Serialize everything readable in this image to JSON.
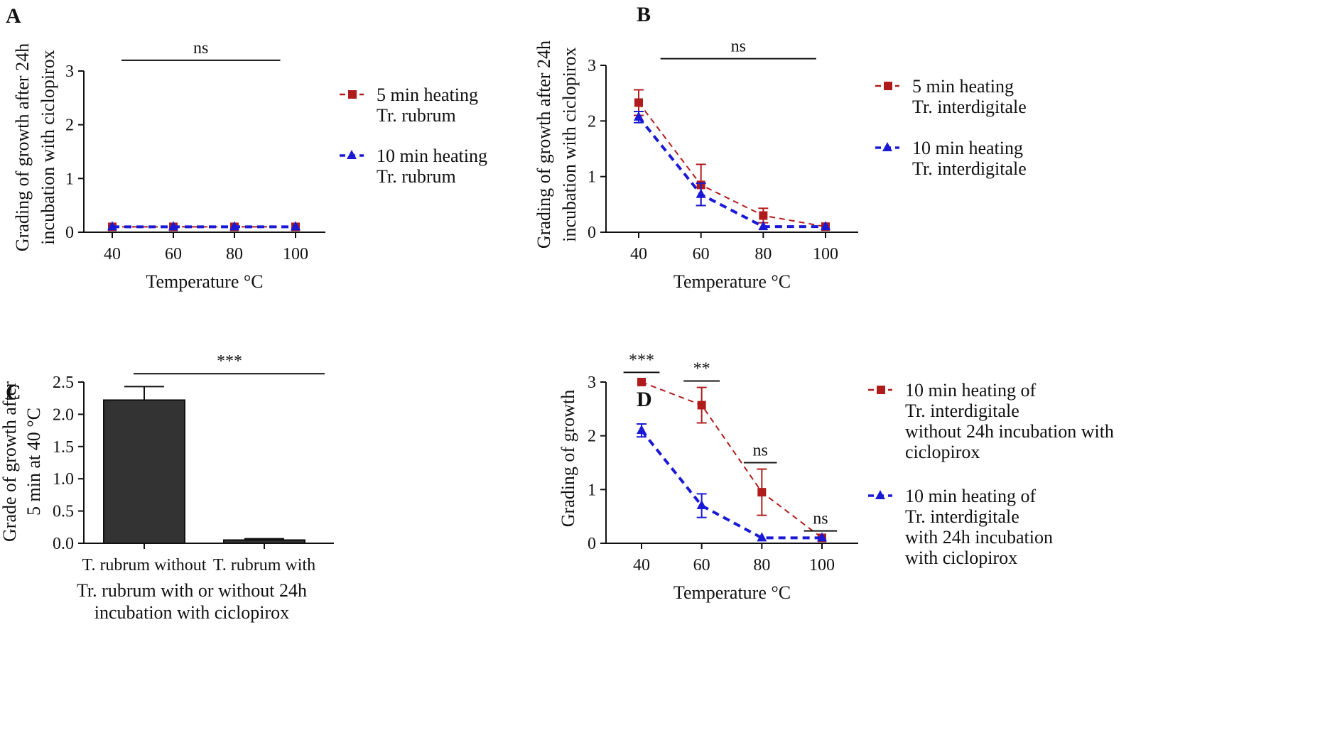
{
  "colors": {
    "red": "#b01c1c",
    "blue": "#1a1ad6",
    "bar": "#333333",
    "axis": "#111111"
  },
  "chart_data": [
    {
      "panel": "A",
      "type": "line",
      "x": [
        40,
        60,
        80,
        100
      ],
      "xlabel": "Temperature °C",
      "ylabel_lines": [
        "Grading of growth after 24h",
        "incubation with ciclopirox"
      ],
      "ylim": [
        0,
        3
      ],
      "yticks": [
        "0",
        "1",
        "2",
        "3"
      ],
      "xticks": [
        "40",
        "60",
        "80",
        "100"
      ],
      "series": [
        {
          "legend_lines": [
            "5 min heating",
            "Tr. rubrum"
          ],
          "color": "red",
          "marker": "square",
          "values": [
            0.1,
            0.1,
            0.1,
            0.1
          ],
          "err": [
            0,
            0,
            0,
            0
          ]
        },
        {
          "legend_lines": [
            "10 min heating",
            "Tr. rubrum"
          ],
          "color": "blue",
          "marker": "triangle",
          "values": [
            0.1,
            0.1,
            0.1,
            0.1
          ],
          "err": [
            0,
            0,
            0,
            0
          ]
        }
      ],
      "significance": [
        {
          "label": "ns",
          "from": 43,
          "to": 95,
          "level": 3.2
        }
      ]
    },
    {
      "panel": "B",
      "type": "line",
      "x": [
        40,
        60,
        80,
        100
      ],
      "xlabel": "Temperature °C",
      "ylabel_lines": [
        "Grading of growth after 24h",
        "incubation with ciclopirox"
      ],
      "ylim": [
        0,
        3
      ],
      "yticks": [
        "0",
        "1",
        "2",
        "3"
      ],
      "xticks": [
        "40",
        "60",
        "80",
        "100"
      ],
      "series": [
        {
          "legend_lines": [
            "5 min heating",
            "Tr. interdigitale"
          ],
          "color": "red",
          "marker": "square",
          "values": [
            2.33,
            0.85,
            0.3,
            0.1
          ],
          "err": [
            0.23,
            0.37,
            0.13,
            0
          ]
        },
        {
          "legend_lines": [
            "10 min heating",
            "Tr. interdigitale"
          ],
          "color": "blue",
          "marker": "triangle",
          "values": [
            2.07,
            0.68,
            0.1,
            0.1
          ],
          "err": [
            0.1,
            0.2,
            0,
            0
          ]
        }
      ],
      "significance": [
        {
          "label": "ns",
          "from": 47,
          "to": 97,
          "level": 3.12
        }
      ]
    },
    {
      "panel": "C",
      "type": "bar",
      "categories": [
        "T. rubrum without",
        "T. rubrum with"
      ],
      "values": [
        2.22,
        0.05
      ],
      "err": [
        0.21,
        0.02
      ],
      "xlabel_lines": [
        "Tr. rubrum with or without 24h",
        "incubation with ciclopirox"
      ],
      "ylabel_lines": [
        "Grade of growth after",
        "5 min at 40 °C"
      ],
      "ylim": [
        0,
        2.5
      ],
      "yticks": [
        "0.0",
        "0.5",
        "1.0",
        "1.5",
        "2.0",
        "2.5"
      ],
      "significance": [
        {
          "label": "***",
          "from": 0,
          "to": 1,
          "level": 2.63
        }
      ]
    },
    {
      "panel": "D",
      "type": "line",
      "x": [
        40,
        60,
        80,
        100
      ],
      "xlabel": "Temperature °C",
      "ylabel_lines": [
        "Grading of growth"
      ],
      "ylim": [
        0,
        3
      ],
      "yticks": [
        "0",
        "1",
        "2",
        "3"
      ],
      "xticks": [
        "40",
        "60",
        "80",
        "100"
      ],
      "series": [
        {
          "legend_lines": [
            "10 min heating of",
            "Tr. interdigitale",
            "without 24h incubation with",
            "ciclopirox"
          ],
          "color": "red",
          "marker": "square",
          "values": [
            3.0,
            2.57,
            0.95,
            0.1
          ],
          "err": [
            0,
            0.33,
            0.43,
            0
          ]
        },
        {
          "legend_lines": [
            "10 min heating of",
            "Tr. interdigitale",
            "with 24h incubation",
            "with ciclopirox"
          ],
          "color": "blue",
          "marker": "triangle",
          "values": [
            2.1,
            0.7,
            0.1,
            0.1
          ],
          "err": [
            0.12,
            0.22,
            0,
            0
          ]
        }
      ],
      "significance": [
        {
          "label": "***",
          "from": 34,
          "to": 46,
          "level": 3.18
        },
        {
          "label": "**",
          "from": 54,
          "to": 66,
          "level": 3.02
        },
        {
          "label": "ns",
          "from": 74,
          "to": 85,
          "level": 1.5
        },
        {
          "label": "ns",
          "from": 94,
          "to": 105,
          "level": 0.23
        }
      ]
    }
  ]
}
